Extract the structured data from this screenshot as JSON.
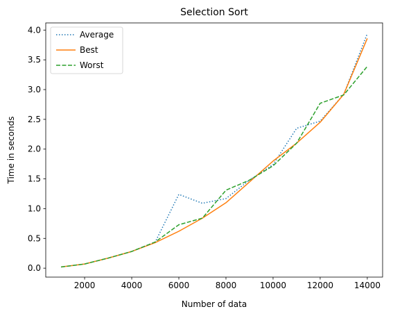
{
  "chart_data": {
    "type": "line",
    "title": "Selection Sort",
    "xlabel": "Number of data",
    "ylabel": "Time in seconds",
    "x": [
      1000,
      2000,
      3000,
      4000,
      5000,
      6000,
      7000,
      8000,
      9000,
      10000,
      11000,
      12000,
      13000,
      14000
    ],
    "xlim": [
      350,
      14650
    ],
    "ylim": [
      -0.15,
      4.12
    ],
    "xticks": [
      2000,
      4000,
      6000,
      8000,
      10000,
      12000,
      14000
    ],
    "yticks": [
      0.0,
      0.5,
      1.0,
      1.5,
      2.0,
      2.5,
      3.0,
      3.5,
      4.0
    ],
    "xtick_labels": [
      "2000",
      "4000",
      "6000",
      "8000",
      "10000",
      "12000",
      "14000"
    ],
    "ytick_labels": [
      "0.0",
      "0.5",
      "1.0",
      "1.5",
      "2.0",
      "2.5",
      "3.0",
      "3.5",
      "4.0"
    ],
    "grid": false,
    "legend_position": "upper left",
    "series": [
      {
        "name": "Average",
        "color": "#1f77b4",
        "dash": "1.5,2.5",
        "values": [
          0.02,
          0.07,
          0.17,
          0.28,
          0.44,
          1.24,
          1.09,
          1.17,
          1.48,
          1.74,
          2.35,
          2.47,
          2.92,
          3.94
        ]
      },
      {
        "name": "Best",
        "color": "#ff7f0e",
        "dash": "",
        "values": [
          0.02,
          0.07,
          0.17,
          0.28,
          0.43,
          0.62,
          0.84,
          1.1,
          1.45,
          1.8,
          2.1,
          2.45,
          2.92,
          3.86
        ]
      },
      {
        "name": "Worst",
        "color": "#2ca02c",
        "dash": "6,2.5",
        "values": [
          0.02,
          0.07,
          0.17,
          0.28,
          0.44,
          0.73,
          0.84,
          1.31,
          1.48,
          1.72,
          2.1,
          2.77,
          2.91,
          3.39
        ]
      }
    ]
  }
}
